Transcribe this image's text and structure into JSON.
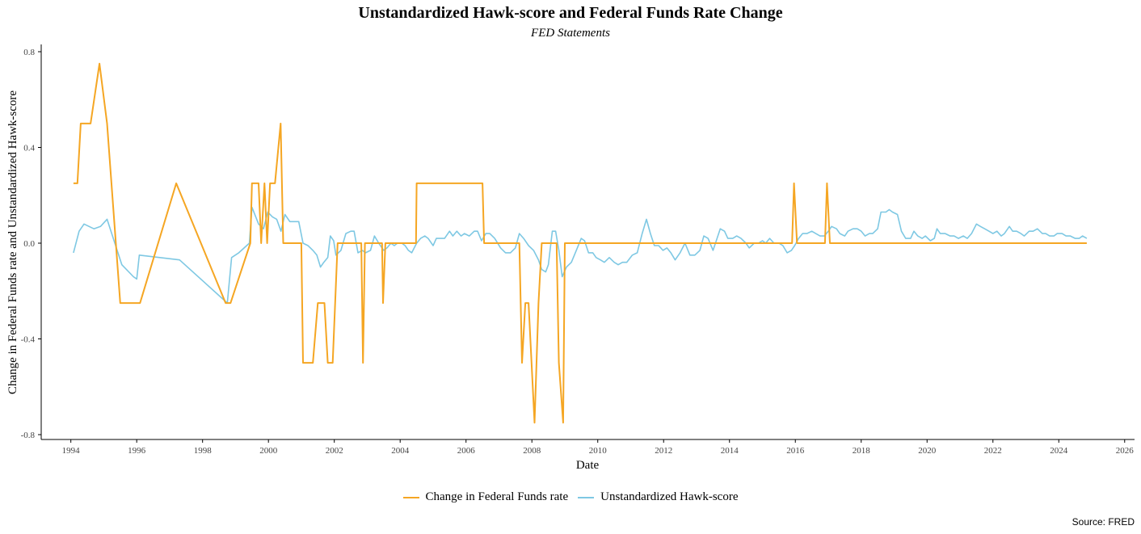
{
  "chart_data": {
    "type": "line",
    "title": "Unstandardized Hawk-score and Federal Funds Rate Change",
    "subtitle": "FED Statements",
    "xlabel": "Date",
    "ylabel": "Change in Federal Funds rate and Unstandardized Hawk-score",
    "xlim": [
      1993.1,
      2026.3
    ],
    "ylim": [
      -0.8,
      0.8
    ],
    "xticks": [
      "1994",
      "1996",
      "1998",
      "2000",
      "2002",
      "2004",
      "2006",
      "2008",
      "2010",
      "2012",
      "2014",
      "2016",
      "2018",
      "2020",
      "2022",
      "2024",
      "2026"
    ],
    "yticks": [
      "0.8",
      "0.4",
      "0.0",
      "-0.4",
      "-0.8"
    ],
    "grid": false,
    "legend_position": "bottom-center",
    "series": [
      {
        "name": "Change in Federal Funds rate",
        "color": "#F5A623",
        "style": "step",
        "points": [
          [
            1994.08,
            0.25
          ],
          [
            1994.2,
            0.25
          ],
          [
            1994.3,
            0.5
          ],
          [
            1994.6,
            0.5
          ],
          [
            1994.87,
            0.75
          ],
          [
            1995.1,
            0.5
          ],
          [
            1995.5,
            -0.25
          ],
          [
            1996.1,
            -0.25
          ],
          [
            1997.2,
            0.25
          ],
          [
            1998.7,
            -0.25
          ],
          [
            1998.85,
            -0.25
          ],
          [
            1999.45,
            0.0
          ],
          [
            1999.5,
            0.25
          ],
          [
            1999.7,
            0.25
          ],
          [
            1999.78,
            0.0
          ],
          [
            1999.88,
            0.25
          ],
          [
            1999.96,
            0.0
          ],
          [
            2000.05,
            0.25
          ],
          [
            2000.2,
            0.25
          ],
          [
            2000.37,
            0.5
          ],
          [
            2000.45,
            0.0
          ],
          [
            2001.0,
            0.0
          ],
          [
            2001.05,
            -0.5
          ],
          [
            2001.35,
            -0.5
          ],
          [
            2001.5,
            -0.25
          ],
          [
            2001.7,
            -0.25
          ],
          [
            2001.8,
            -0.5
          ],
          [
            2001.95,
            -0.5
          ],
          [
            2002.1,
            0.0
          ],
          [
            2002.82,
            0.0
          ],
          [
            2002.87,
            -0.5
          ],
          [
            2002.93,
            0.0
          ],
          [
            2003.45,
            0.0
          ],
          [
            2003.48,
            -0.25
          ],
          [
            2003.55,
            0.0
          ],
          [
            2004.48,
            0.0
          ],
          [
            2004.5,
            0.25
          ],
          [
            2006.5,
            0.25
          ],
          [
            2006.55,
            0.0
          ],
          [
            2007.62,
            0.0
          ],
          [
            2007.7,
            -0.5
          ],
          [
            2007.8,
            -0.25
          ],
          [
            2007.9,
            -0.25
          ],
          [
            2008.08,
            -0.75
          ],
          [
            2008.2,
            -0.25
          ],
          [
            2008.3,
            0.0
          ],
          [
            2008.75,
            0.0
          ],
          [
            2008.82,
            -0.5
          ],
          [
            2008.95,
            -0.75
          ],
          [
            2009.0,
            0.0
          ],
          [
            2015.9,
            0.0
          ],
          [
            2015.96,
            0.25
          ],
          [
            2016.05,
            0.0
          ],
          [
            2016.9,
            0.0
          ],
          [
            2016.96,
            0.25
          ],
          [
            2017.05,
            0.0
          ],
          [
            2024.85,
            0.0
          ]
        ]
      },
      {
        "name": "Unstandardized Hawk-score",
        "color": "#7EC8E3",
        "style": "line",
        "points": [
          [
            1994.08,
            -0.04
          ],
          [
            1994.25,
            0.05
          ],
          [
            1994.4,
            0.08
          ],
          [
            1994.7,
            0.06
          ],
          [
            1994.9,
            0.07
          ],
          [
            1995.1,
            0.1
          ],
          [
            1995.55,
            -0.09
          ],
          [
            1995.9,
            -0.14
          ],
          [
            1996.0,
            -0.15
          ],
          [
            1996.08,
            -0.05
          ],
          [
            1997.3,
            -0.07
          ],
          [
            1998.75,
            -0.25
          ],
          [
            1998.88,
            -0.06
          ],
          [
            1999.1,
            -0.04
          ],
          [
            1999.42,
            0.0
          ],
          [
            1999.5,
            0.15
          ],
          [
            1999.7,
            0.08
          ],
          [
            1999.85,
            0.06
          ],
          [
            1999.98,
            0.13
          ],
          [
            2000.12,
            0.11
          ],
          [
            2000.25,
            0.1
          ],
          [
            2000.38,
            0.05
          ],
          [
            2000.5,
            0.12
          ],
          [
            2000.65,
            0.09
          ],
          [
            2000.8,
            0.09
          ],
          [
            2000.92,
            0.09
          ],
          [
            2001.05,
            0.0
          ],
          [
            2001.2,
            -0.01
          ],
          [
            2001.35,
            -0.03
          ],
          [
            2001.47,
            -0.05
          ],
          [
            2001.58,
            -0.1
          ],
          [
            2001.68,
            -0.08
          ],
          [
            2001.8,
            -0.06
          ],
          [
            2001.88,
            0.03
          ],
          [
            2001.98,
            0.01
          ],
          [
            2002.05,
            -0.05
          ],
          [
            2002.2,
            -0.03
          ],
          [
            2002.35,
            0.04
          ],
          [
            2002.5,
            0.05
          ],
          [
            2002.6,
            0.05
          ],
          [
            2002.72,
            -0.04
          ],
          [
            2002.85,
            -0.03
          ],
          [
            2002.95,
            -0.04
          ],
          [
            2003.1,
            -0.03
          ],
          [
            2003.22,
            0.03
          ],
          [
            2003.35,
            0.0
          ],
          [
            2003.5,
            -0.03
          ],
          [
            2003.6,
            -0.02
          ],
          [
            2003.72,
            0.0
          ],
          [
            2003.82,
            -0.01
          ],
          [
            2003.92,
            0.0
          ],
          [
            2004.05,
            0.0
          ],
          [
            2004.15,
            -0.01
          ],
          [
            2004.25,
            -0.03
          ],
          [
            2004.35,
            -0.04
          ],
          [
            2004.5,
            0.0
          ],
          [
            2004.62,
            0.02
          ],
          [
            2004.75,
            0.03
          ],
          [
            2004.85,
            0.02
          ],
          [
            2005.0,
            -0.01
          ],
          [
            2005.1,
            0.02
          ],
          [
            2005.25,
            0.02
          ],
          [
            2005.35,
            0.02
          ],
          [
            2005.5,
            0.05
          ],
          [
            2005.6,
            0.03
          ],
          [
            2005.72,
            0.05
          ],
          [
            2005.85,
            0.03
          ],
          [
            2005.95,
            0.04
          ],
          [
            2006.1,
            0.03
          ],
          [
            2006.25,
            0.05
          ],
          [
            2006.35,
            0.05
          ],
          [
            2006.47,
            0.01
          ],
          [
            2006.6,
            0.04
          ],
          [
            2006.72,
            0.04
          ],
          [
            2006.87,
            0.02
          ],
          [
            2007.05,
            -0.02
          ],
          [
            2007.2,
            -0.04
          ],
          [
            2007.35,
            -0.04
          ],
          [
            2007.5,
            -0.02
          ],
          [
            2007.62,
            0.04
          ],
          [
            2007.75,
            0.02
          ],
          [
            2007.9,
            -0.01
          ],
          [
            2008.05,
            -0.03
          ],
          [
            2008.2,
            -0.07
          ],
          [
            2008.3,
            -0.11
          ],
          [
            2008.42,
            -0.12
          ],
          [
            2008.5,
            -0.09
          ],
          [
            2008.62,
            0.05
          ],
          [
            2008.72,
            0.05
          ],
          [
            2008.82,
            -0.03
          ],
          [
            2008.92,
            -0.14
          ],
          [
            2009.05,
            -0.1
          ],
          [
            2009.2,
            -0.08
          ],
          [
            2009.35,
            -0.03
          ],
          [
            2009.5,
            0.02
          ],
          [
            2009.6,
            0.01
          ],
          [
            2009.72,
            -0.04
          ],
          [
            2009.85,
            -0.04
          ],
          [
            2009.95,
            -0.06
          ],
          [
            2010.08,
            -0.07
          ],
          [
            2010.2,
            -0.08
          ],
          [
            2010.35,
            -0.06
          ],
          [
            2010.5,
            -0.08
          ],
          [
            2010.62,
            -0.09
          ],
          [
            2010.75,
            -0.08
          ],
          [
            2010.88,
            -0.08
          ],
          [
            2011.05,
            -0.05
          ],
          [
            2011.2,
            -0.04
          ],
          [
            2011.35,
            0.04
          ],
          [
            2011.48,
            0.1
          ],
          [
            2011.6,
            0.04
          ],
          [
            2011.72,
            -0.01
          ],
          [
            2011.85,
            -0.01
          ],
          [
            2011.98,
            -0.03
          ],
          [
            2012.1,
            -0.02
          ],
          [
            2012.22,
            -0.04
          ],
          [
            2012.35,
            -0.07
          ],
          [
            2012.5,
            -0.04
          ],
          [
            2012.65,
            0.0
          ],
          [
            2012.8,
            -0.05
          ],
          [
            2012.95,
            -0.05
          ],
          [
            2013.1,
            -0.03
          ],
          [
            2013.22,
            0.03
          ],
          [
            2013.35,
            0.02
          ],
          [
            2013.5,
            -0.03
          ],
          [
            2013.6,
            0.01
          ],
          [
            2013.72,
            0.06
          ],
          [
            2013.85,
            0.05
          ],
          [
            2013.95,
            0.02
          ],
          [
            2014.1,
            0.02
          ],
          [
            2014.22,
            0.03
          ],
          [
            2014.35,
            0.02
          ],
          [
            2014.5,
            0.0
          ],
          [
            2014.6,
            -0.02
          ],
          [
            2014.75,
            0.0
          ],
          [
            2014.88,
            0.0
          ],
          [
            2015.0,
            0.01
          ],
          [
            2015.1,
            0.0
          ],
          [
            2015.22,
            0.02
          ],
          [
            2015.35,
            0.0
          ],
          [
            2015.5,
            0.0
          ],
          [
            2015.62,
            -0.01
          ],
          [
            2015.75,
            -0.04
          ],
          [
            2015.88,
            -0.03
          ],
          [
            2015.98,
            -0.01
          ],
          [
            2016.1,
            0.02
          ],
          [
            2016.22,
            0.04
          ],
          [
            2016.35,
            0.04
          ],
          [
            2016.5,
            0.05
          ],
          [
            2016.62,
            0.04
          ],
          [
            2016.75,
            0.03
          ],
          [
            2016.88,
            0.03
          ],
          [
            2017.0,
            0.05
          ],
          [
            2017.1,
            0.07
          ],
          [
            2017.25,
            0.06
          ],
          [
            2017.35,
            0.04
          ],
          [
            2017.5,
            0.03
          ],
          [
            2017.6,
            0.05
          ],
          [
            2017.75,
            0.06
          ],
          [
            2017.88,
            0.06
          ],
          [
            2018.0,
            0.05
          ],
          [
            2018.12,
            0.03
          ],
          [
            2018.25,
            0.04
          ],
          [
            2018.35,
            0.04
          ],
          [
            2018.5,
            0.06
          ],
          [
            2018.6,
            0.13
          ],
          [
            2018.75,
            0.13
          ],
          [
            2018.85,
            0.14
          ],
          [
            2018.95,
            0.13
          ],
          [
            2019.1,
            0.12
          ],
          [
            2019.22,
            0.05
          ],
          [
            2019.35,
            0.02
          ],
          [
            2019.5,
            0.02
          ],
          [
            2019.6,
            0.05
          ],
          [
            2019.72,
            0.03
          ],
          [
            2019.85,
            0.02
          ],
          [
            2019.95,
            0.03
          ],
          [
            2020.1,
            0.01
          ],
          [
            2020.22,
            0.02
          ],
          [
            2020.3,
            0.06
          ],
          [
            2020.4,
            0.04
          ],
          [
            2020.55,
            0.04
          ],
          [
            2020.7,
            0.03
          ],
          [
            2020.82,
            0.03
          ],
          [
            2020.95,
            0.02
          ],
          [
            2021.1,
            0.03
          ],
          [
            2021.22,
            0.02
          ],
          [
            2021.35,
            0.04
          ],
          [
            2021.5,
            0.08
          ],
          [
            2021.62,
            0.07
          ],
          [
            2021.75,
            0.06
          ],
          [
            2021.88,
            0.05
          ],
          [
            2022.0,
            0.04
          ],
          [
            2022.12,
            0.05
          ],
          [
            2022.25,
            0.03
          ],
          [
            2022.35,
            0.04
          ],
          [
            2022.5,
            0.07
          ],
          [
            2022.6,
            0.05
          ],
          [
            2022.72,
            0.05
          ],
          [
            2022.85,
            0.04
          ],
          [
            2022.95,
            0.03
          ],
          [
            2023.1,
            0.05
          ],
          [
            2023.22,
            0.05
          ],
          [
            2023.35,
            0.06
          ],
          [
            2023.5,
            0.04
          ],
          [
            2023.6,
            0.04
          ],
          [
            2023.72,
            0.03
          ],
          [
            2023.85,
            0.03
          ],
          [
            2023.95,
            0.04
          ],
          [
            2024.1,
            0.04
          ],
          [
            2024.22,
            0.03
          ],
          [
            2024.35,
            0.03
          ],
          [
            2024.5,
            0.02
          ],
          [
            2024.62,
            0.02
          ],
          [
            2024.72,
            0.03
          ],
          [
            2024.85,
            0.02
          ]
        ]
      }
    ]
  },
  "source_note": "Source: FRED"
}
